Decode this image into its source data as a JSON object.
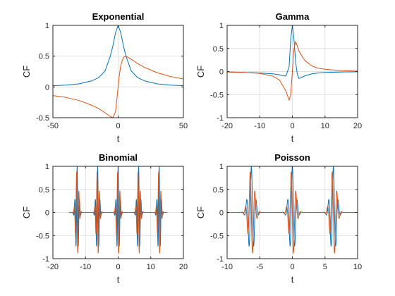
{
  "chart_data": [
    {
      "type": "line",
      "title": "Exponential",
      "xlabel": "t",
      "ylabel": "CF",
      "xlim": [
        -50,
        50
      ],
      "ylim": [
        -0.5,
        1
      ],
      "xticks": [
        "-50",
        "0",
        "50"
      ],
      "yticks": [
        "-0.5",
        "0",
        "0.5",
        "1"
      ],
      "grid": true,
      "series": [
        {
          "color": "#0072BD",
          "x": [
            -50,
            -40,
            -30,
            -20,
            -15,
            -10,
            -6,
            -4,
            -2,
            0,
            2,
            4,
            6,
            10,
            15,
            20,
            30,
            40,
            50
          ],
          "y": [
            0.02,
            0.03,
            0.05,
            0.1,
            0.15,
            0.26,
            0.5,
            0.67,
            0.88,
            1,
            0.88,
            0.67,
            0.5,
            0.26,
            0.15,
            0.1,
            0.05,
            0.03,
            0.02
          ]
        },
        {
          "color": "#D95319",
          "x": [
            -50,
            -40,
            -30,
            -20,
            -15,
            -10,
            -6,
            -4,
            -2,
            -1,
            0,
            1,
            2,
            4,
            6,
            10,
            15,
            20,
            30,
            40,
            50
          ],
          "y": [
            -0.14,
            -0.17,
            -0.22,
            -0.3,
            -0.35,
            -0.42,
            -0.48,
            -0.5,
            -0.4,
            -0.2,
            0,
            0.2,
            0.35,
            0.48,
            0.5,
            0.45,
            0.38,
            0.32,
            0.23,
            0.17,
            0.13
          ]
        }
      ]
    },
    {
      "type": "line",
      "title": "Gamma",
      "xlabel": "t",
      "ylabel": "CF",
      "xlim": [
        -20,
        20
      ],
      "ylim": [
        -1,
        1
      ],
      "xticks": [
        "-20",
        "-10",
        "0",
        "10",
        "20"
      ],
      "yticks": [
        "-1",
        "-0.5",
        "0",
        "0.5",
        "1"
      ],
      "grid": true,
      "series": [
        {
          "color": "#0072BD",
          "x": [
            -20,
            -15,
            -10,
            -6,
            -4,
            -3,
            -2,
            -1,
            -0.5,
            0,
            0.5,
            1,
            1.5,
            2,
            3,
            4,
            5,
            6,
            8,
            10,
            15,
            20
          ],
          "y": [
            -0.01,
            -0.02,
            -0.03,
            -0.05,
            -0.07,
            -0.09,
            -0.1,
            0.1,
            0.7,
            1,
            0.7,
            0.2,
            -0.05,
            -0.15,
            -0.12,
            -0.09,
            -0.07,
            -0.05,
            -0.03,
            -0.02,
            -0.01,
            -0.005
          ]
        },
        {
          "color": "#D95319",
          "x": [
            -20,
            -15,
            -10,
            -6,
            -4,
            -2,
            -1,
            -0.5,
            0,
            0.5,
            1,
            1.5,
            2,
            3,
            4,
            6,
            8,
            10,
            15,
            20
          ],
          "y": [
            -0.01,
            -0.02,
            -0.04,
            -0.1,
            -0.18,
            -0.42,
            -0.62,
            -0.5,
            0,
            0.5,
            0.65,
            0.55,
            0.45,
            0.32,
            0.23,
            0.12,
            0.07,
            0.05,
            0.02,
            0.01
          ]
        }
      ]
    },
    {
      "type": "line",
      "title": "Binomial",
      "xlabel": "t",
      "ylabel": "CF",
      "xlim": [
        -20,
        20
      ],
      "ylim": [
        -1,
        1
      ],
      "xticks": [
        "-20",
        "-10",
        "0",
        "10",
        "20"
      ],
      "yticks": [
        "-1",
        "-0.5",
        "0",
        "0.5",
        "1"
      ],
      "grid": true,
      "series": [
        {
          "color": "#0072BD",
          "fn": "periodic-burst",
          "period": 6.2832,
          "xrange": [
            -15,
            15
          ],
          "amp": 1,
          "phase": 0
        },
        {
          "color": "#D95319",
          "fn": "periodic-burst",
          "period": 6.2832,
          "xrange": [
            -15,
            15
          ],
          "amp": 0.95,
          "phase": 1.5708
        }
      ]
    },
    {
      "type": "line",
      "title": "Poisson",
      "xlabel": "t",
      "ylabel": "CF",
      "xlim": [
        -10,
        10
      ],
      "ylim": [
        -1,
        1
      ],
      "xticks": [
        "-10",
        "-5",
        "0",
        "5",
        "10"
      ],
      "yticks": [
        "-1",
        "-0.5",
        "0",
        "0.5",
        "1"
      ],
      "grid": true,
      "series": [
        {
          "color": "#0072BD",
          "fn": "periodic-burst",
          "period": 6.2832,
          "xrange": [
            -10,
            10
          ],
          "amp": 1,
          "phase": 0
        },
        {
          "color": "#D95319",
          "fn": "periodic-burst",
          "period": 6.2832,
          "xrange": [
            -10,
            10
          ],
          "amp": 0.95,
          "phase": 1.5708
        }
      ]
    }
  ]
}
